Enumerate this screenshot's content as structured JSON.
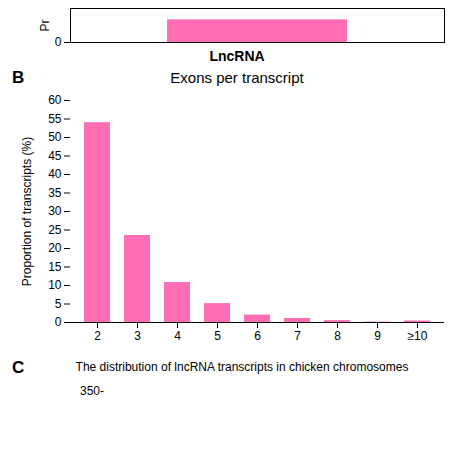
{
  "chart_data": [
    {
      "type": "bar",
      "categories": [
        null
      ],
      "values": [
        0.1
      ],
      "color": "#FF6EB4",
      "ylabel": "Pr",
      "xlabel": "LncRNA",
      "ylim": [
        0,
        0.15
      ],
      "yticks": [
        0
      ]
    },
    {
      "type": "bar",
      "title": "Exons per transcript",
      "categories": [
        "2",
        "3",
        "4",
        "5",
        "6",
        "7",
        "8",
        "9",
        "≥10"
      ],
      "values": [
        54.0,
        23.5,
        10.8,
        5.1,
        2.0,
        1.1,
        0.5,
        0.1,
        0.4
      ],
      "color": "#FF6EB4",
      "ylabel": "Proportion of transcripts (%)",
      "ylim": [
        0,
        60
      ],
      "yticks": [
        0,
        5,
        10,
        15,
        20,
        25,
        30,
        35,
        40,
        45,
        50,
        55,
        60
      ],
      "grid": false,
      "annotations": [
        "B",
        "C",
        "The distribution of lncRNA transcripts in chicken chromosomes",
        "350-"
      ]
    }
  ]
}
